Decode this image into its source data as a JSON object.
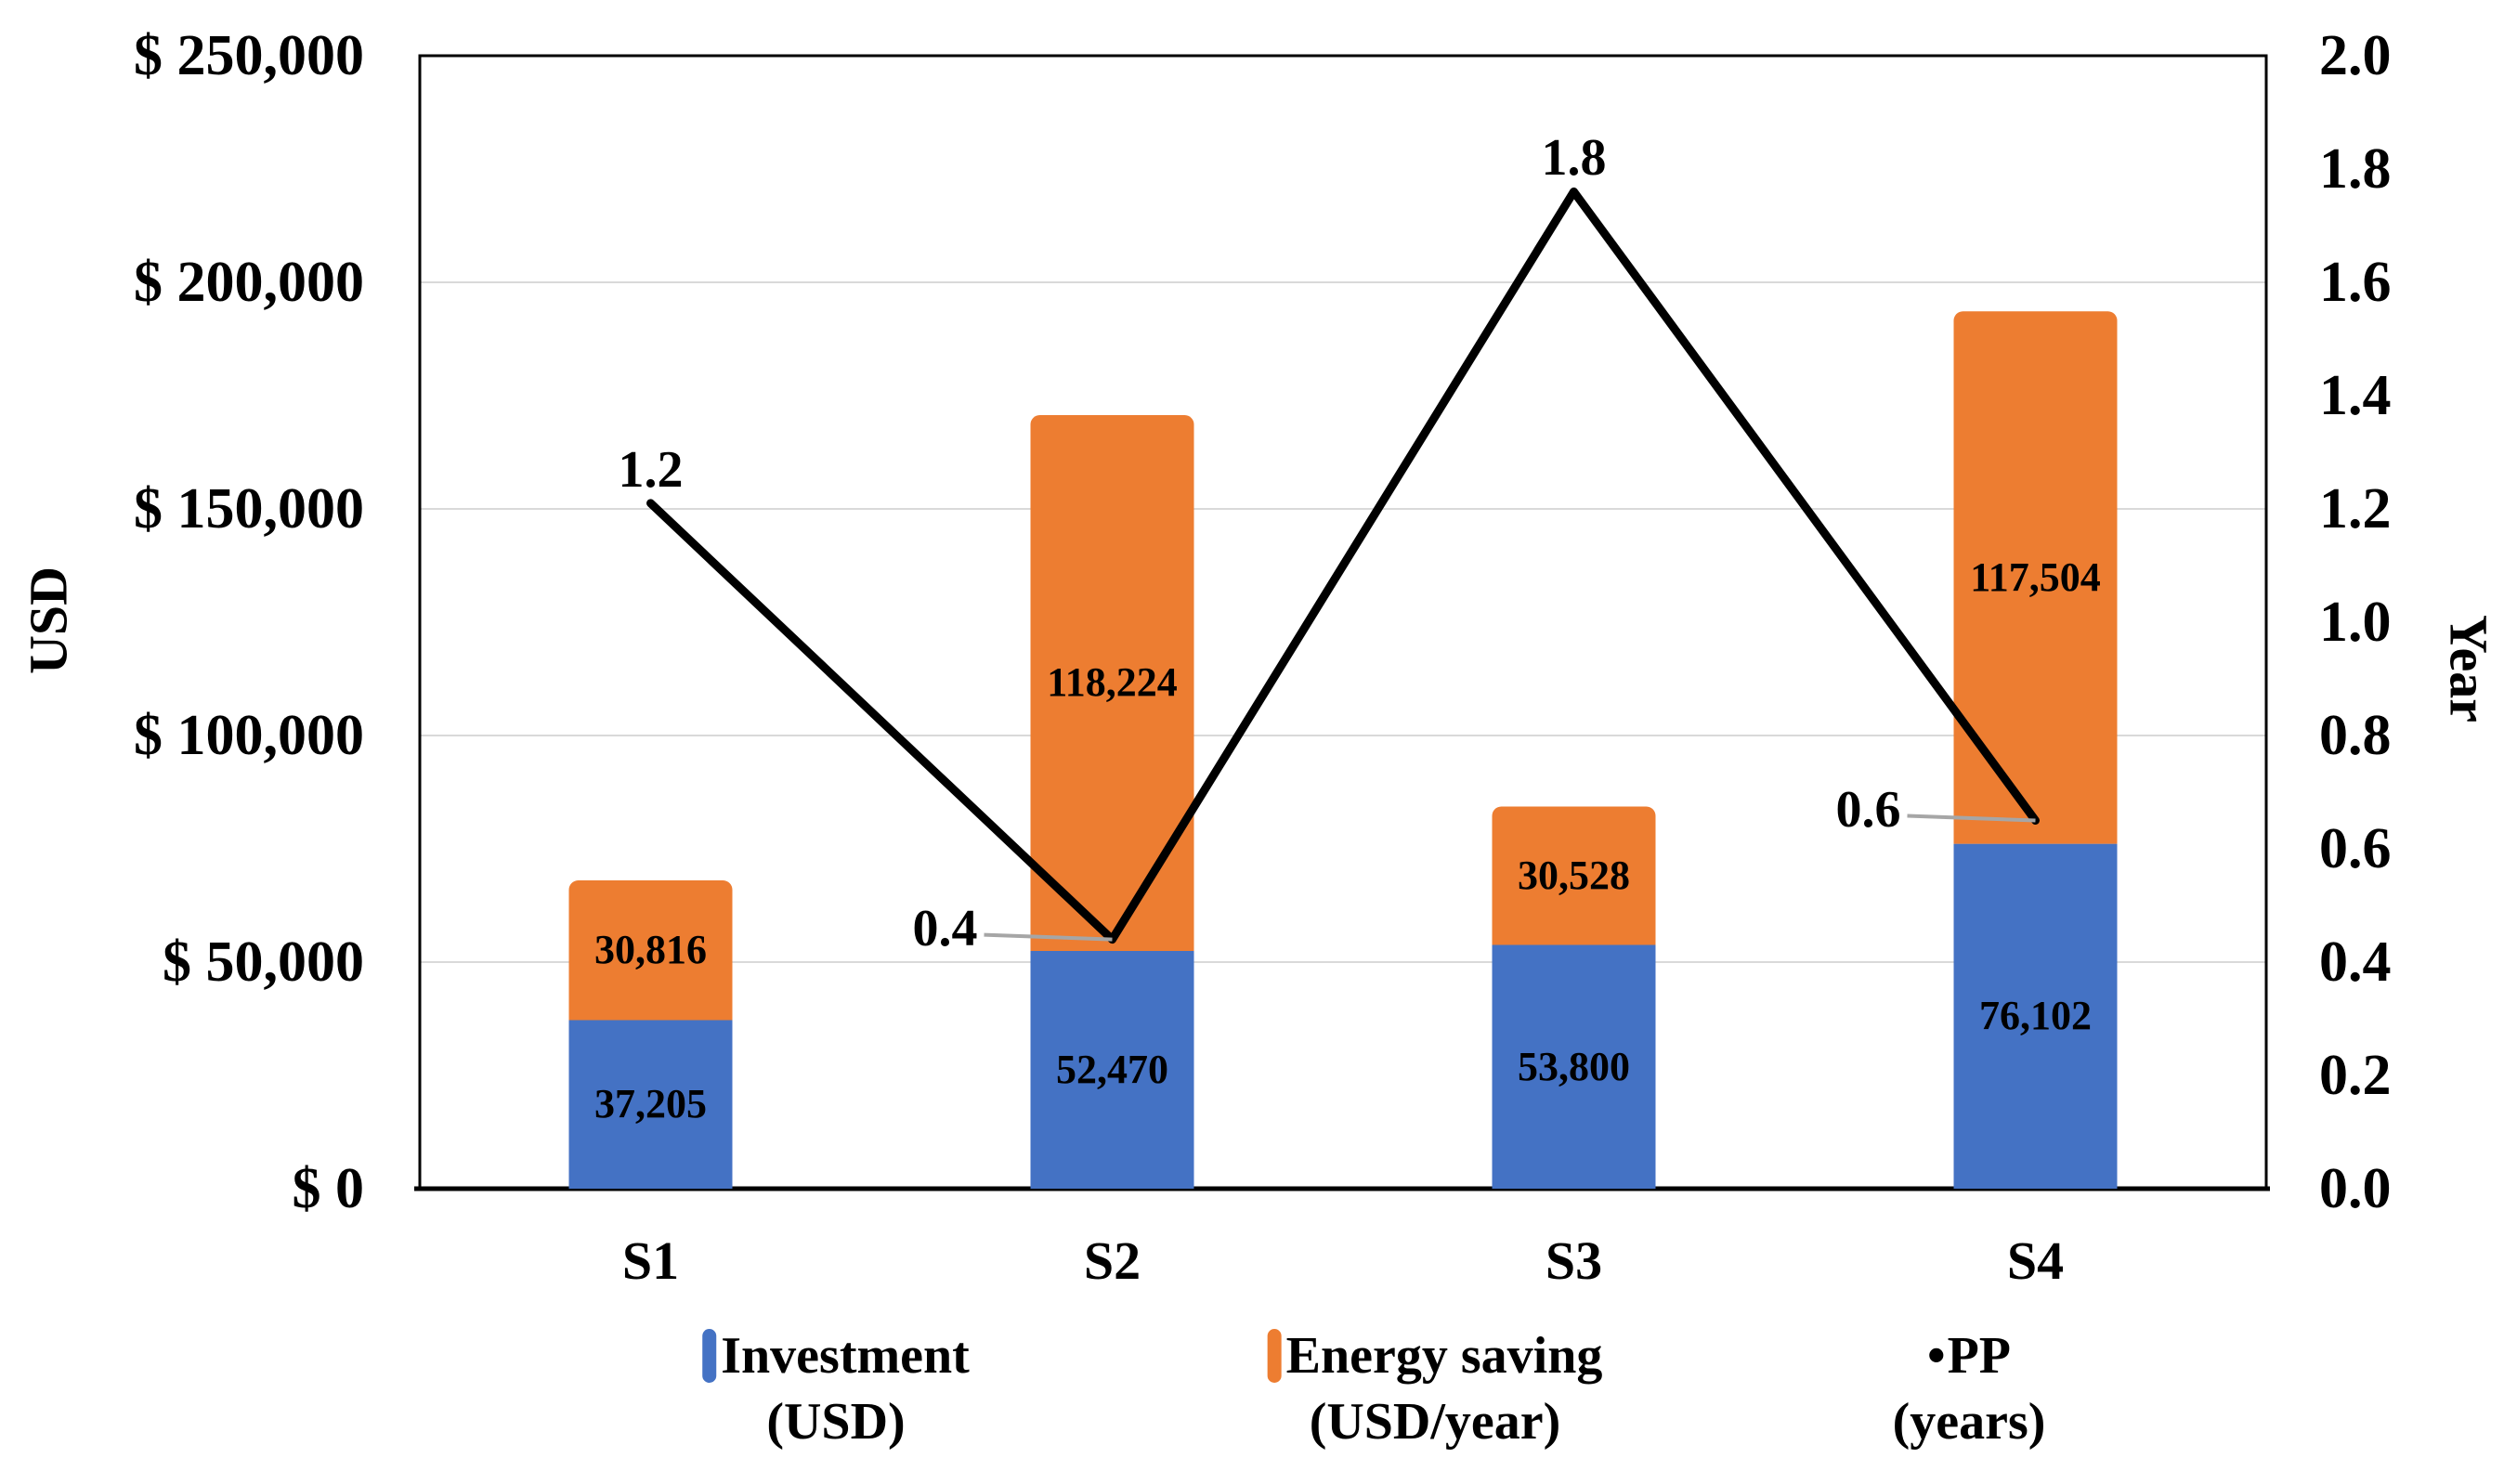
{
  "chart_data": {
    "type": "combo-stacked-bar-line",
    "categories": [
      "S1",
      "S2",
      "S3",
      "S4"
    ],
    "series": [
      {
        "name": "Investment (USD)",
        "type": "bar",
        "color_key": "investment",
        "values": [
          37205,
          52470,
          53800,
          76102
        ],
        "labels": [
          "37,205",
          "52,470",
          "53,800",
          "76,102"
        ]
      },
      {
        "name": "Energy saving (USD/year)",
        "type": "bar",
        "color_key": "energy",
        "values": [
          30816,
          118224,
          30528,
          117504
        ],
        "labels": [
          "30,816",
          "118,224",
          "30,528",
          "117,504"
        ]
      },
      {
        "name": "PP (years)",
        "type": "line",
        "color_key": "pp",
        "values": [
          1.21,
          0.44,
          1.76,
          0.65
        ],
        "labels": [
          "1.2",
          "0.4",
          "1.8",
          "0.6"
        ],
        "label_placement": [
          "above",
          "left-leader",
          "above",
          "left-leader"
        ]
      }
    ],
    "left_axis": {
      "title": "USD",
      "min": 0,
      "max": 250000,
      "tick_step": 50000,
      "tick_labels": [
        "$ 250,000",
        "$ 200,000",
        "$ 150,000",
        "$ 100,000",
        "$ 50,000",
        "$ 0"
      ]
    },
    "right_axis": {
      "title": "Year",
      "min": 0.0,
      "max": 2.0,
      "tick_step": 0.2,
      "tick_labels": [
        "2.0",
        "1.8",
        "1.6",
        "1.4",
        "1.2",
        "1.0",
        "0.8",
        "0.6",
        "0.4",
        "0.2",
        "0.0"
      ]
    },
    "legend": [
      {
        "marker": "bar-swatch",
        "color_key": "investment",
        "line1": "Investment",
        "line2": "(USD)"
      },
      {
        "marker": "bar-swatch",
        "color_key": "energy",
        "line1": "Energy saving",
        "line2": "(USD/year)"
      },
      {
        "marker": "dot",
        "bullet": "•",
        "color_key": "pp",
        "line1": "PP",
        "line2": "(years)"
      }
    ],
    "colors": {
      "investment": "#4472C4",
      "energy": "#ED7D31",
      "pp": "#000000",
      "gridline": "#D9D9D9",
      "leader": "#A6A6A6",
      "frame": "#000000"
    },
    "grid": true,
    "legend_position": "bottom"
  }
}
